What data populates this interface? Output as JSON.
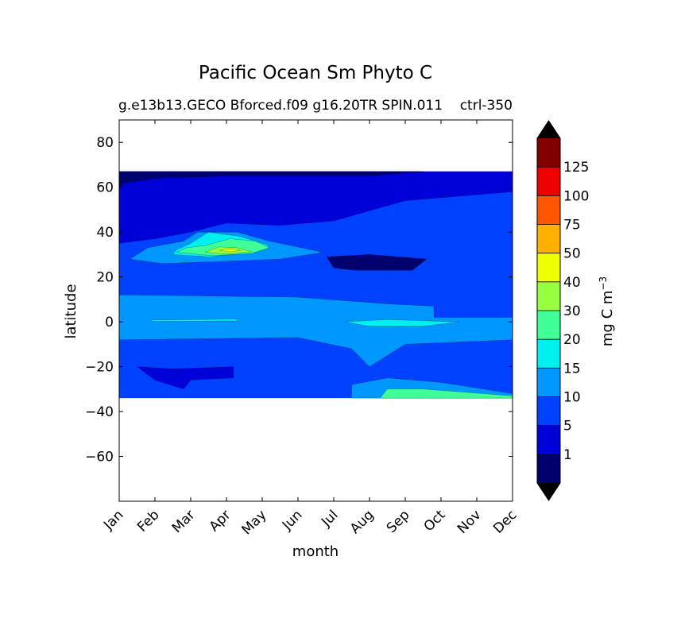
{
  "chart_data": {
    "type": "contourf",
    "title": "Pacific Ocean Sm Phyto C",
    "subtitle_left": "g.e13b13.GECO Bforced.f09 g16.20TR SPIN.011",
    "subtitle_right": "ctrl-350",
    "xlabel": "month",
    "ylabel": "latitude",
    "x_categories": [
      "Jan",
      "Feb",
      "Mar",
      "Apr",
      "May",
      "Jun",
      "Jul",
      "Aug",
      "Sep",
      "Oct",
      "Nov",
      "Dec"
    ],
    "xlim": [
      0,
      11
    ],
    "ylim": [
      -80,
      90
    ],
    "y_ticks": [
      -60,
      -40,
      -20,
      0,
      20,
      40,
      60,
      80
    ],
    "y_tick_labels": [
      "−60",
      "−40",
      "−20",
      "0",
      "20",
      "40",
      "60",
      "80"
    ],
    "data_lat_range": [
      -34,
      67
    ],
    "colorbar": {
      "label": "mg C m⁻³",
      "label_base": "mg C m",
      "label_exp": "−3",
      "tick_labels": [
        "1",
        "5",
        "10",
        "15",
        "20",
        "30",
        "40",
        "50",
        "75",
        "100",
        "125"
      ],
      "colors": [
        "#00006e",
        "#0000d8",
        "#0040ff",
        "#0098ff",
        "#00f0f0",
        "#40ff98",
        "#98ff40",
        "#f0ff00",
        "#ffb000",
        "#ff5500",
        "#ee0000",
        "#800000"
      ],
      "extend": "both"
    },
    "fields": {
      "background_level": "5-10",
      "regions": [
        {
          "level": "0-1",
          "color": "#00006e",
          "x": [
            1,
            8.5
          ],
          "y": [
            60,
            67
          ],
          "note": "high-latitude band near 65N"
        },
        {
          "level": "0-1",
          "color": "#00006e",
          "x": [
            5.8,
            8.6
          ],
          "y": [
            23,
            30
          ],
          "note": "subtropical minimum Aug-Sep"
        },
        {
          "level": "1-5",
          "color": "#0000d8",
          "x": [
            0,
            11
          ],
          "y": [
            35,
            67
          ],
          "note": "north Pacific low"
        },
        {
          "level": "1-5",
          "color": "#0000d8",
          "x": [
            0.5,
            3.2
          ],
          "y": [
            -30,
            -20
          ],
          "note": "south subtropical low"
        },
        {
          "level": "10-15",
          "color": "#0098ff",
          "x": [
            0,
            11
          ],
          "y": [
            -8,
            12
          ],
          "note": "equatorial band"
        },
        {
          "level": "10-15",
          "color": "#0098ff",
          "x": [
            0.3,
            5.7
          ],
          "y": [
            26,
            40
          ],
          "note": "spring bloom band"
        },
        {
          "level": "10-15",
          "color": "#0098ff",
          "x": [
            6.5,
            11
          ],
          "y": [
            -34,
            -27
          ],
          "note": "southern spring"
        },
        {
          "level": "15-20",
          "color": "#00f0f0",
          "x": [
            6.3,
            9.5
          ],
          "y": [
            -1,
            1
          ],
          "note": "equatorial Aug-Oct"
        },
        {
          "level": "15-20",
          "color": "#00f0f0",
          "x": [
            1.8,
            4.2
          ],
          "y": [
            30,
            40
          ],
          "note": "bloom edge"
        },
        {
          "level": "20-30",
          "color": "#40ff98",
          "x": [
            1.5,
            4.2
          ],
          "y": [
            29,
            37
          ],
          "note": "spring bloom core"
        },
        {
          "level": "20-30",
          "color": "#40ff98",
          "x": [
            7.5,
            11
          ],
          "y": [
            -34,
            -30
          ],
          "note": "southern Sep-Dec"
        },
        {
          "level": "30-40",
          "color": "#98ff40",
          "x": [
            2.6,
            3.5
          ],
          "y": [
            30,
            33
          ],
          "note": "bloom peak"
        },
        {
          "level": "40-50",
          "color": "#f0ff00",
          "x": [
            2.9,
            3.3
          ],
          "y": [
            31.5,
            32.5
          ],
          "note": "bloom peak center"
        }
      ]
    }
  }
}
